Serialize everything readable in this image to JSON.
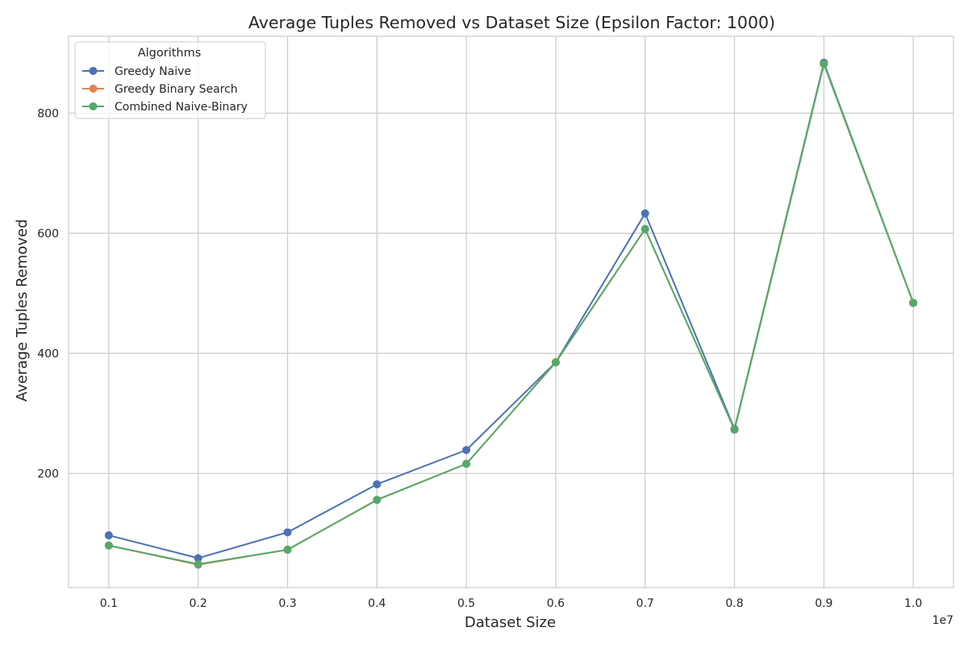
{
  "chart_data": {
    "type": "line",
    "title": "Average Tuples Removed vs Dataset Size (Epsilon Factor: 1000)",
    "xlabel": "Dataset Size",
    "ylabel": "Average Tuples Removed",
    "x_offset_label": "1e7",
    "x": [
      0.1,
      0.2,
      0.3,
      0.4,
      0.5,
      0.6,
      0.7,
      0.8,
      0.9,
      1.0
    ],
    "x_ticks": [
      "0.1",
      "0.2",
      "0.3",
      "0.4",
      "0.5",
      "0.6",
      "0.7",
      "0.8",
      "0.9",
      "1.0"
    ],
    "y_ticks": [
      "200",
      "400",
      "600",
      "800"
    ],
    "xlim": [
      0.055,
      1.045
    ],
    "ylim": [
      10,
      928
    ],
    "grid": true,
    "legend": {
      "title": "Algorithms",
      "placement": "top-left"
    },
    "series": [
      {
        "name": "Greedy Naive",
        "color": "#4c72b0",
        "values": [
          97,
          59,
          102,
          182,
          239,
          385,
          633,
          274,
          884,
          484
        ]
      },
      {
        "name": "Greedy Binary Search",
        "color": "#dd8452",
        "values": [
          80,
          48,
          73,
          156,
          216,
          385,
          607,
          273,
          882,
          484
        ]
      },
      {
        "name": "Combined Naive-Binary",
        "color": "#55a868",
        "values": [
          80,
          49,
          73,
          156,
          216,
          385,
          607,
          273,
          882,
          484
        ]
      }
    ]
  }
}
